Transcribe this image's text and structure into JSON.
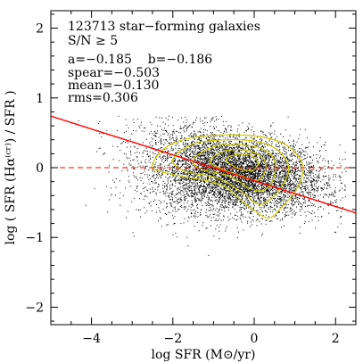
{
  "chart_data": {
    "type": "scatter",
    "xlabel": "log SFR (M⊙/yr)",
    "ylabel": "log ( SFR (Hα⁽ᶜʳ⁾) / SFR )",
    "xlim": [
      -5,
      2.5
    ],
    "ylim": [
      -2.25,
      2.25
    ],
    "x_ticks": [
      -4,
      -2,
      0,
      2
    ],
    "y_ticks": [
      -2,
      -1,
      0,
      1,
      2
    ],
    "x_tick_labels": [
      "−4",
      "−2",
      "0",
      "2"
    ],
    "y_tick_labels": [
      "−2",
      "−1",
      "0",
      "1",
      "2"
    ],
    "grid": false,
    "annotations": [
      "123713 star−forming galaxies",
      "S/N ≥ 5",
      "a=−0.185    b=−0.186",
      "spear=−0.503",
      "mean=−0.130",
      "rms=0.306"
    ],
    "fit_line": {
      "slope": -0.185,
      "intercept": -0.186,
      "color": "#ff0000"
    },
    "zero_line": {
      "y": 0,
      "color": "#ff0000",
      "style": "dashed"
    },
    "contours": [
      {
        "level": 1,
        "color": "#cccc00",
        "points": [
          [
            -2.5,
            0.05
          ],
          [
            -2.2,
            0.28
          ],
          [
            -1.6,
            0.42
          ],
          [
            -0.7,
            0.47
          ],
          [
            0.2,
            0.44
          ],
          [
            0.85,
            0.3
          ],
          [
            1.2,
            0.02
          ],
          [
            1.05,
            -0.3
          ],
          [
            0.7,
            -0.55
          ],
          [
            0.35,
            -0.72
          ],
          [
            -0.15,
            -0.55
          ],
          [
            -0.8,
            -0.25
          ],
          [
            -1.8,
            -0.12
          ],
          [
            -2.4,
            -0.04
          ]
        ]
      },
      {
        "level": 2,
        "color": "#cccc00",
        "points": [
          [
            -2.0,
            0.12
          ],
          [
            -1.5,
            0.34
          ],
          [
            -0.7,
            0.4
          ],
          [
            0.1,
            0.37
          ],
          [
            0.6,
            0.24
          ],
          [
            0.85,
            0.0
          ],
          [
            0.7,
            -0.25
          ],
          [
            0.4,
            -0.45
          ],
          [
            0.1,
            -0.52
          ],
          [
            -0.3,
            -0.35
          ],
          [
            -0.9,
            -0.15
          ],
          [
            -1.7,
            -0.05
          ]
        ]
      },
      {
        "level": 3,
        "color": "#cccc00",
        "points": [
          [
            -1.5,
            0.12
          ],
          [
            -1.0,
            0.3
          ],
          [
            -0.4,
            0.33
          ],
          [
            0.2,
            0.27
          ],
          [
            0.5,
            0.1
          ],
          [
            0.48,
            -0.15
          ],
          [
            0.25,
            -0.32
          ],
          [
            -0.1,
            -0.3
          ],
          [
            -0.6,
            -0.12
          ],
          [
            -1.3,
            -0.02
          ]
        ]
      },
      {
        "level": 4,
        "color": "#cccc00",
        "points": [
          [
            -1.1,
            0.1
          ],
          [
            -0.7,
            0.24
          ],
          [
            -0.2,
            0.25
          ],
          [
            0.2,
            0.15
          ],
          [
            0.28,
            -0.02
          ],
          [
            0.1,
            -0.18
          ],
          [
            -0.3,
            -0.12
          ],
          [
            -0.8,
            -0.02
          ]
        ]
      },
      {
        "level": 5,
        "color": "#cccc00",
        "points": [
          [
            -0.7,
            0.12
          ],
          [
            -0.4,
            0.19
          ],
          [
            -0.05,
            0.17
          ],
          [
            0.1,
            0.06
          ],
          [
            -0.05,
            -0.04
          ],
          [
            -0.4,
            -0.01
          ]
        ]
      }
    ],
    "point_cloud": {
      "n_galaxies": 123713,
      "color": "#000000",
      "core_mean_x": -0.5,
      "core_sd_x": 1.1,
      "core_mean_y": -0.08,
      "core_sd_y": 0.27,
      "xy_correlation": -0.5
    }
  }
}
